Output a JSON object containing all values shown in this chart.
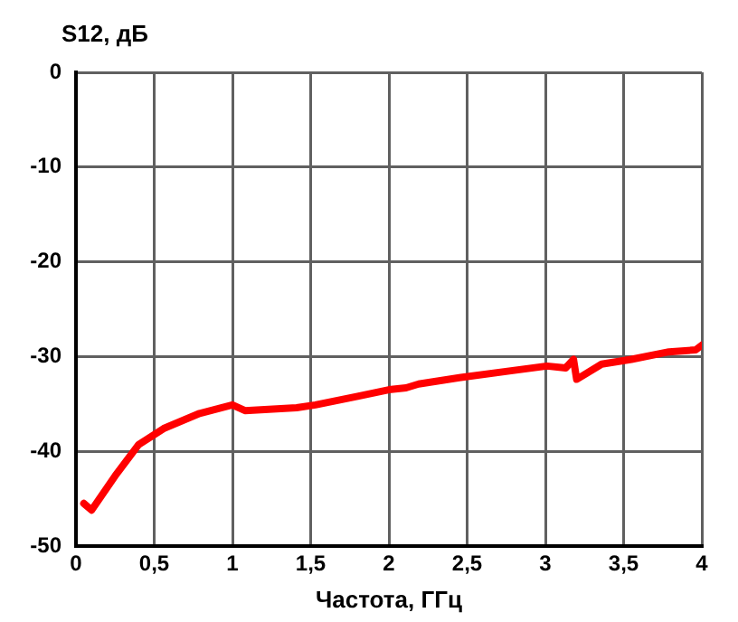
{
  "chart_data": {
    "type": "line",
    "ylabel": "S12, дБ",
    "xlabel": "Частота, ГГц",
    "xlim": [
      0,
      4
    ],
    "xticks": [
      {
        "value": 0,
        "label": "0"
      },
      {
        "value": 0.5,
        "label": "0,5"
      },
      {
        "value": 1,
        "label": "1"
      },
      {
        "value": 1.5,
        "label": "1,5"
      },
      {
        "value": 2,
        "label": "2"
      },
      {
        "value": 2.5,
        "label": "2,5"
      },
      {
        "value": 3,
        "label": "3"
      },
      {
        "value": 3.5,
        "label": "3,5"
      },
      {
        "value": 4,
        "label": "4"
      }
    ],
    "ylim": [
      -50,
      0
    ],
    "yticks": [
      -50,
      -40,
      -30,
      -20,
      -10,
      0
    ],
    "grid": true,
    "legend": false,
    "marker": "none",
    "line_style": "solid",
    "series": [
      {
        "color": "#ff0000",
        "x": [
          0.05,
          0.1,
          0.25,
          0.4,
          0.56,
          0.79,
          1.0,
          1.08,
          1.41,
          1.53,
          1.8,
          2.0,
          2.11,
          2.19,
          2.46,
          2.78,
          3.01,
          3.13,
          3.18,
          3.2,
          3.36,
          3.55,
          3.79,
          3.96,
          4.0
        ],
        "values": [
          -45.5,
          -46.2,
          -42.6,
          -39.3,
          -37.6,
          -36,
          -35.1,
          -35.7,
          -35.4,
          -35.1,
          -34.2,
          -33.5,
          -33.3,
          -32.9,
          -32.2,
          -31.5,
          -31,
          -31.2,
          -30.3,
          -32.4,
          -30.8,
          -30.3,
          -29.5,
          -29.3,
          -28.8
        ]
      }
    ]
  }
}
